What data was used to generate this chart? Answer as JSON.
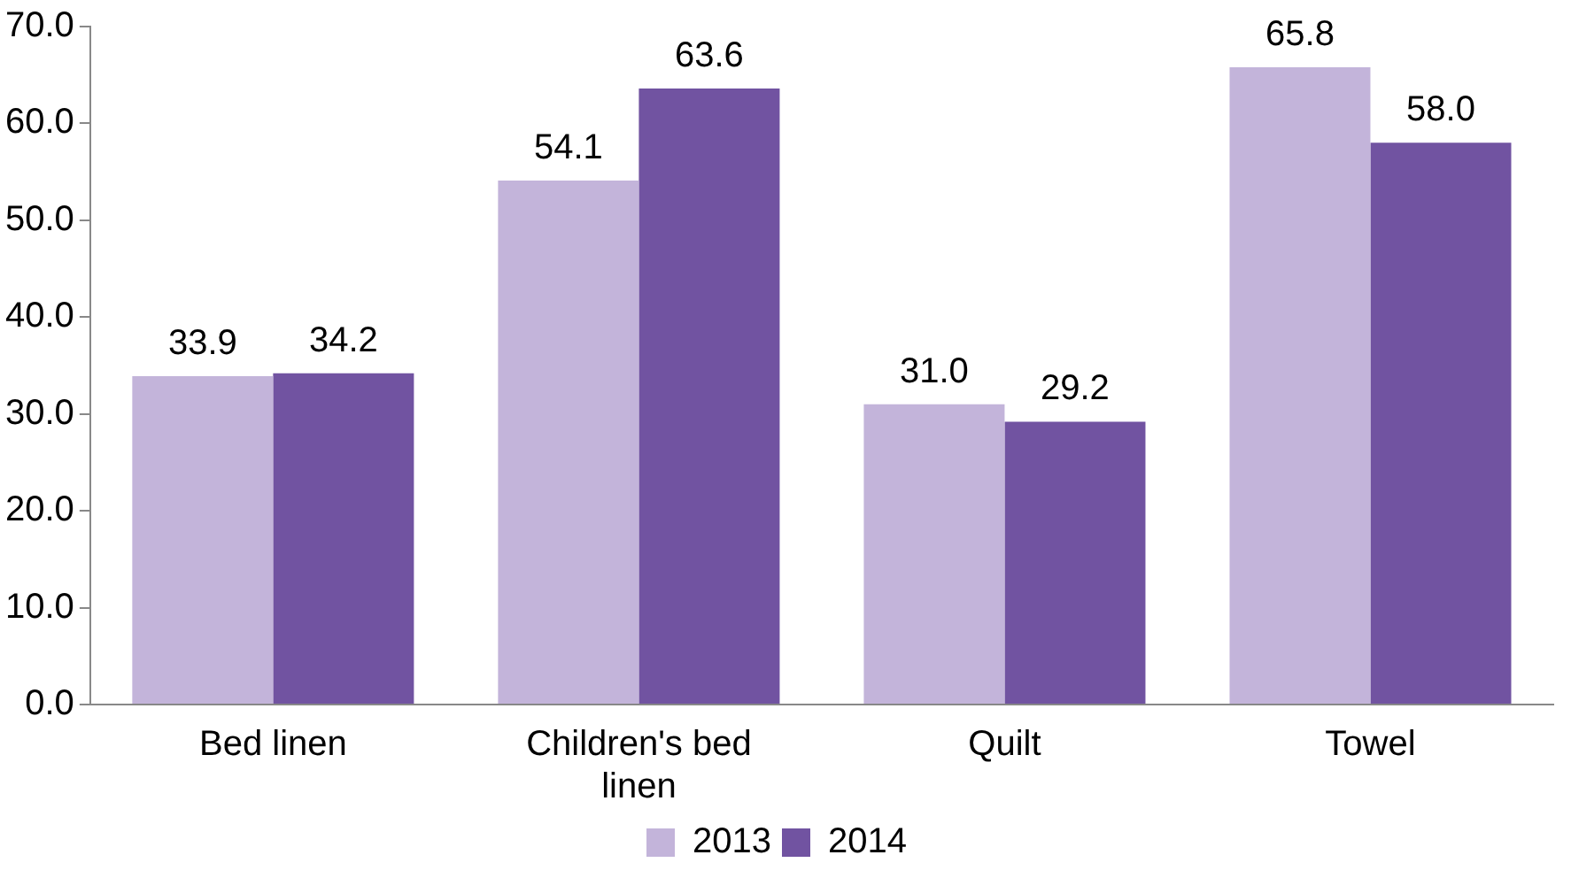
{
  "chart_data": {
    "type": "bar",
    "categories": [
      "Bed linen",
      "Children's bed linen",
      "Quilt",
      "Towel"
    ],
    "series": [
      {
        "name": "2013",
        "color": "#c3b4da",
        "values": [
          33.9,
          54.1,
          31.0,
          65.8
        ],
        "value_labels": [
          "33.9",
          "54.1",
          "31.0",
          "65.8"
        ]
      },
      {
        "name": "2014",
        "color": "#7153a1",
        "values": [
          34.2,
          63.6,
          29.2,
          58.0
        ],
        "value_labels": [
          "34.2",
          "63.6",
          "29.2",
          "58.0"
        ]
      }
    ],
    "ylim": [
      0,
      70
    ],
    "yticks": [
      {
        "value": 0,
        "label": "0.0"
      },
      {
        "value": 10,
        "label": "10.0"
      },
      {
        "value": 20,
        "label": "20.0"
      },
      {
        "value": 30,
        "label": "30.0"
      },
      {
        "value": 40,
        "label": "40.0"
      },
      {
        "value": 50,
        "label": "50.0"
      },
      {
        "value": 60,
        "label": "60.0"
      },
      {
        "value": 70,
        "label": "70.0"
      }
    ],
    "grid": false,
    "legend": "bottom"
  }
}
